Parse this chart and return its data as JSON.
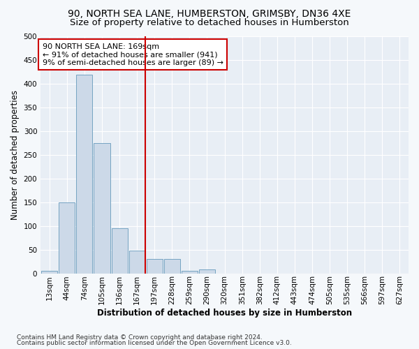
{
  "title1": "90, NORTH SEA LANE, HUMBERSTON, GRIMSBY, DN36 4XE",
  "title2": "Size of property relative to detached houses in Humberston",
  "xlabel": "Distribution of detached houses by size in Humberston",
  "ylabel": "Number of detached properties",
  "footnote1": "Contains HM Land Registry data © Crown copyright and database right 2024.",
  "footnote2": "Contains public sector information licensed under the Open Government Licence v3.0.",
  "bin_labels": [
    "13sqm",
    "44sqm",
    "74sqm",
    "105sqm",
    "136sqm",
    "167sqm",
    "197sqm",
    "228sqm",
    "259sqm",
    "290sqm",
    "320sqm",
    "351sqm",
    "382sqm",
    "412sqm",
    "443sqm",
    "474sqm",
    "505sqm",
    "535sqm",
    "566sqm",
    "597sqm",
    "627sqm"
  ],
  "bar_values": [
    5,
    150,
    418,
    275,
    95,
    48,
    30,
    30,
    5,
    8,
    0,
    0,
    0,
    0,
    0,
    0,
    0,
    0,
    0,
    0,
    0
  ],
  "bar_color": "#ccd9e8",
  "bar_edge_color": "#6699bb",
  "vline_bin_index": 5,
  "vline_color": "#cc0000",
  "annotation_text": "90 NORTH SEA LANE: 169sqm\n← 91% of detached houses are smaller (941)\n9% of semi-detached houses are larger (89) →",
  "annotation_box_color": "#ffffff",
  "annotation_box_edge": "#cc0000",
  "ylim": [
    0,
    500
  ],
  "bg_color": "#e8eef5",
  "grid_color": "#ffffff",
  "fig_bg_color": "#f5f8fb",
  "title_fontsize": 10,
  "subtitle_fontsize": 9.5,
  "axis_label_fontsize": 8.5,
  "tick_fontsize": 7.5,
  "annotation_fontsize": 8,
  "footnote_fontsize": 6.5
}
